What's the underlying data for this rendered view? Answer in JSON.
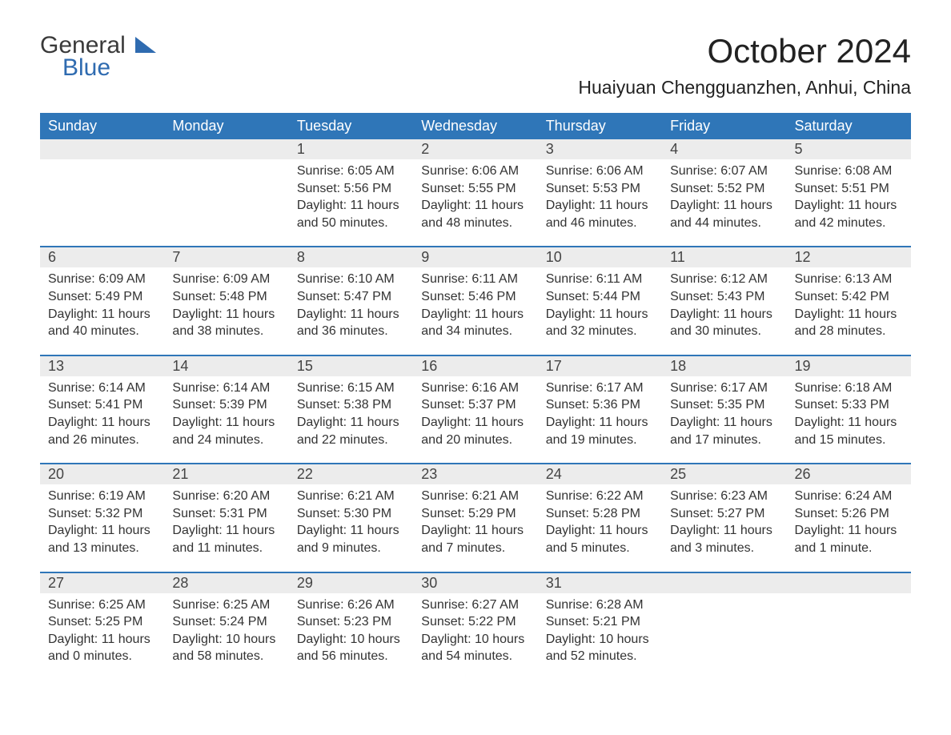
{
  "brand": {
    "part1": "General",
    "part2": "Blue"
  },
  "title": "October 2024",
  "location": "Huaiyuan Chengguanzhen, Anhui, China",
  "colors": {
    "header_bg": "#2f76b8",
    "header_text": "#ffffff",
    "daynum_bg": "#ececec",
    "row_divider": "#2f76b8",
    "text": "#333333",
    "brand_blue": "#2f6bb0"
  },
  "weekdays": [
    "Sunday",
    "Monday",
    "Tuesday",
    "Wednesday",
    "Thursday",
    "Friday",
    "Saturday"
  ],
  "weeks": [
    [
      null,
      null,
      {
        "n": "1",
        "sunrise": "Sunrise: 6:05 AM",
        "sunset": "Sunset: 5:56 PM",
        "d1": "Daylight: 11 hours",
        "d2": "and 50 minutes."
      },
      {
        "n": "2",
        "sunrise": "Sunrise: 6:06 AM",
        "sunset": "Sunset: 5:55 PM",
        "d1": "Daylight: 11 hours",
        "d2": "and 48 minutes."
      },
      {
        "n": "3",
        "sunrise": "Sunrise: 6:06 AM",
        "sunset": "Sunset: 5:53 PM",
        "d1": "Daylight: 11 hours",
        "d2": "and 46 minutes."
      },
      {
        "n": "4",
        "sunrise": "Sunrise: 6:07 AM",
        "sunset": "Sunset: 5:52 PM",
        "d1": "Daylight: 11 hours",
        "d2": "and 44 minutes."
      },
      {
        "n": "5",
        "sunrise": "Sunrise: 6:08 AM",
        "sunset": "Sunset: 5:51 PM",
        "d1": "Daylight: 11 hours",
        "d2": "and 42 minutes."
      }
    ],
    [
      {
        "n": "6",
        "sunrise": "Sunrise: 6:09 AM",
        "sunset": "Sunset: 5:49 PM",
        "d1": "Daylight: 11 hours",
        "d2": "and 40 minutes."
      },
      {
        "n": "7",
        "sunrise": "Sunrise: 6:09 AM",
        "sunset": "Sunset: 5:48 PM",
        "d1": "Daylight: 11 hours",
        "d2": "and 38 minutes."
      },
      {
        "n": "8",
        "sunrise": "Sunrise: 6:10 AM",
        "sunset": "Sunset: 5:47 PM",
        "d1": "Daylight: 11 hours",
        "d2": "and 36 minutes."
      },
      {
        "n": "9",
        "sunrise": "Sunrise: 6:11 AM",
        "sunset": "Sunset: 5:46 PM",
        "d1": "Daylight: 11 hours",
        "d2": "and 34 minutes."
      },
      {
        "n": "10",
        "sunrise": "Sunrise: 6:11 AM",
        "sunset": "Sunset: 5:44 PM",
        "d1": "Daylight: 11 hours",
        "d2": "and 32 minutes."
      },
      {
        "n": "11",
        "sunrise": "Sunrise: 6:12 AM",
        "sunset": "Sunset: 5:43 PM",
        "d1": "Daylight: 11 hours",
        "d2": "and 30 minutes."
      },
      {
        "n": "12",
        "sunrise": "Sunrise: 6:13 AM",
        "sunset": "Sunset: 5:42 PM",
        "d1": "Daylight: 11 hours",
        "d2": "and 28 minutes."
      }
    ],
    [
      {
        "n": "13",
        "sunrise": "Sunrise: 6:14 AM",
        "sunset": "Sunset: 5:41 PM",
        "d1": "Daylight: 11 hours",
        "d2": "and 26 minutes."
      },
      {
        "n": "14",
        "sunrise": "Sunrise: 6:14 AM",
        "sunset": "Sunset: 5:39 PM",
        "d1": "Daylight: 11 hours",
        "d2": "and 24 minutes."
      },
      {
        "n": "15",
        "sunrise": "Sunrise: 6:15 AM",
        "sunset": "Sunset: 5:38 PM",
        "d1": "Daylight: 11 hours",
        "d2": "and 22 minutes."
      },
      {
        "n": "16",
        "sunrise": "Sunrise: 6:16 AM",
        "sunset": "Sunset: 5:37 PM",
        "d1": "Daylight: 11 hours",
        "d2": "and 20 minutes."
      },
      {
        "n": "17",
        "sunrise": "Sunrise: 6:17 AM",
        "sunset": "Sunset: 5:36 PM",
        "d1": "Daylight: 11 hours",
        "d2": "and 19 minutes."
      },
      {
        "n": "18",
        "sunrise": "Sunrise: 6:17 AM",
        "sunset": "Sunset: 5:35 PM",
        "d1": "Daylight: 11 hours",
        "d2": "and 17 minutes."
      },
      {
        "n": "19",
        "sunrise": "Sunrise: 6:18 AM",
        "sunset": "Sunset: 5:33 PM",
        "d1": "Daylight: 11 hours",
        "d2": "and 15 minutes."
      }
    ],
    [
      {
        "n": "20",
        "sunrise": "Sunrise: 6:19 AM",
        "sunset": "Sunset: 5:32 PM",
        "d1": "Daylight: 11 hours",
        "d2": "and 13 minutes."
      },
      {
        "n": "21",
        "sunrise": "Sunrise: 6:20 AM",
        "sunset": "Sunset: 5:31 PM",
        "d1": "Daylight: 11 hours",
        "d2": "and 11 minutes."
      },
      {
        "n": "22",
        "sunrise": "Sunrise: 6:21 AM",
        "sunset": "Sunset: 5:30 PM",
        "d1": "Daylight: 11 hours",
        "d2": "and 9 minutes."
      },
      {
        "n": "23",
        "sunrise": "Sunrise: 6:21 AM",
        "sunset": "Sunset: 5:29 PM",
        "d1": "Daylight: 11 hours",
        "d2": "and 7 minutes."
      },
      {
        "n": "24",
        "sunrise": "Sunrise: 6:22 AM",
        "sunset": "Sunset: 5:28 PM",
        "d1": "Daylight: 11 hours",
        "d2": "and 5 minutes."
      },
      {
        "n": "25",
        "sunrise": "Sunrise: 6:23 AM",
        "sunset": "Sunset: 5:27 PM",
        "d1": "Daylight: 11 hours",
        "d2": "and 3 minutes."
      },
      {
        "n": "26",
        "sunrise": "Sunrise: 6:24 AM",
        "sunset": "Sunset: 5:26 PM",
        "d1": "Daylight: 11 hours",
        "d2": "and 1 minute."
      }
    ],
    [
      {
        "n": "27",
        "sunrise": "Sunrise: 6:25 AM",
        "sunset": "Sunset: 5:25 PM",
        "d1": "Daylight: 11 hours",
        "d2": "and 0 minutes."
      },
      {
        "n": "28",
        "sunrise": "Sunrise: 6:25 AM",
        "sunset": "Sunset: 5:24 PM",
        "d1": "Daylight: 10 hours",
        "d2": "and 58 minutes."
      },
      {
        "n": "29",
        "sunrise": "Sunrise: 6:26 AM",
        "sunset": "Sunset: 5:23 PM",
        "d1": "Daylight: 10 hours",
        "d2": "and 56 minutes."
      },
      {
        "n": "30",
        "sunrise": "Sunrise: 6:27 AM",
        "sunset": "Sunset: 5:22 PM",
        "d1": "Daylight: 10 hours",
        "d2": "and 54 minutes."
      },
      {
        "n": "31",
        "sunrise": "Sunrise: 6:28 AM",
        "sunset": "Sunset: 5:21 PM",
        "d1": "Daylight: 10 hours",
        "d2": "and 52 minutes."
      },
      null,
      null
    ]
  ]
}
